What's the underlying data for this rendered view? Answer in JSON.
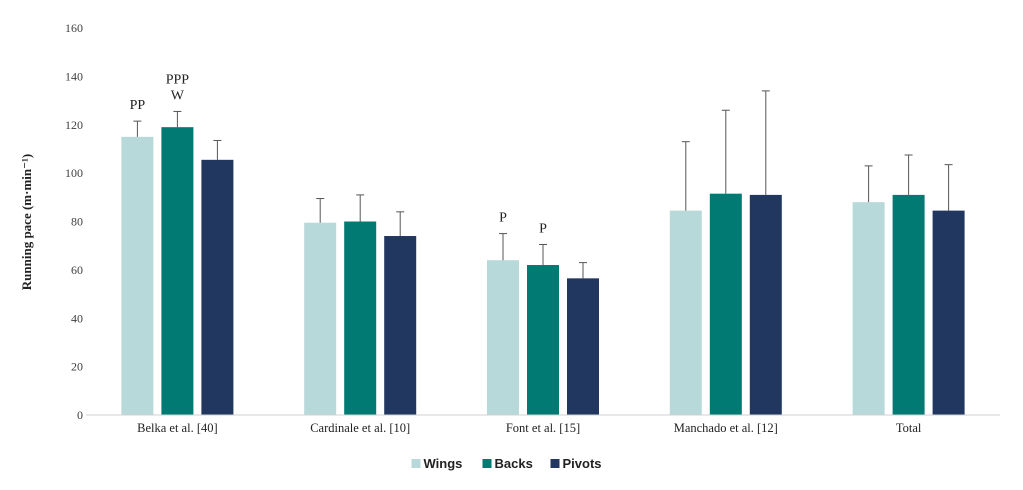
{
  "chart_data": {
    "type": "bar",
    "ylabel": "Running pace (m·min⁻¹)",
    "ylim": [
      0,
      160
    ],
    "yticks": [
      0,
      20,
      40,
      60,
      80,
      100,
      120,
      140,
      160
    ],
    "grid": false,
    "legend_position": "bottom",
    "categories": [
      "Belka et al. [40]",
      "Cardinale et al. [10]",
      "Font et al. [15]",
      "Manchado et al. [12]",
      "Total"
    ],
    "series": [
      {
        "name": "Wings",
        "color": "#b8d9d9",
        "values": [
          115,
          79.5,
          64,
          84.5,
          88
        ],
        "error": [
          6.5,
          10,
          11,
          28.5,
          15
        ]
      },
      {
        "name": "Backs",
        "color": "#007a73",
        "values": [
          119,
          80,
          62,
          91.5,
          91
        ],
        "error": [
          6.5,
          11,
          8.5,
          34.5,
          16.5
        ]
      },
      {
        "name": "Pivots",
        "color": "#22375f",
        "values": [
          105.5,
          74,
          56.5,
          91,
          84.5
        ],
        "error": [
          8,
          10,
          6.5,
          43,
          19
        ]
      }
    ],
    "annotations": [
      {
        "category": 0,
        "series": 0,
        "lines": [
          "PP"
        ]
      },
      {
        "category": 0,
        "series": 1,
        "lines": [
          "PPP",
          "W"
        ]
      },
      {
        "category": 2,
        "series": 0,
        "lines": [
          "P"
        ]
      },
      {
        "category": 2,
        "series": 1,
        "lines": [
          "P"
        ]
      }
    ]
  }
}
